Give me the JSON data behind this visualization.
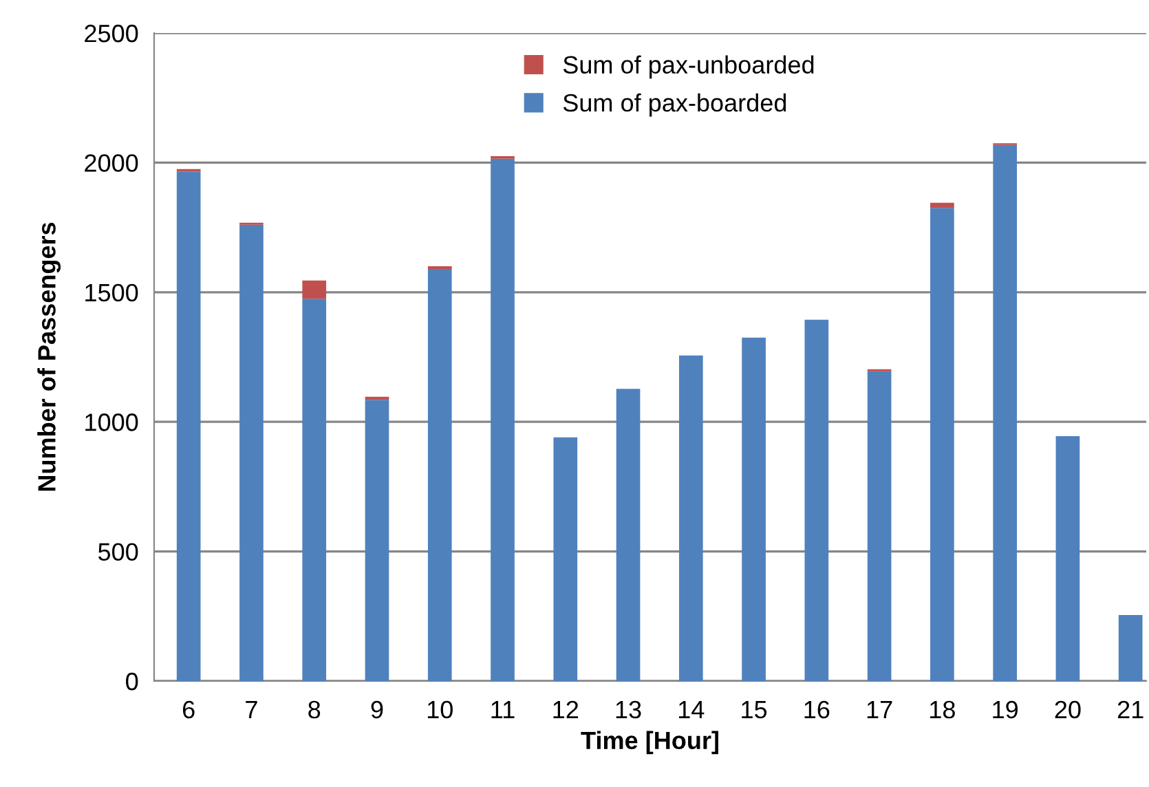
{
  "chart_data": {
    "type": "bar",
    "stacked": true,
    "xlabel": "Time [Hour]",
    "ylabel": "Number of Passengers",
    "categories": [
      "6",
      "7",
      "8",
      "9",
      "10",
      "11",
      "12",
      "13",
      "14",
      "15",
      "16",
      "17",
      "18",
      "19",
      "20",
      "21"
    ],
    "series": [
      {
        "name": "Sum of pax-boarded",
        "color": "#4f81bd",
        "values": [
          1965,
          1760,
          1475,
          1085,
          1590,
          2015,
          940,
          1127,
          1256,
          1325,
          1394,
          1195,
          1825,
          2068,
          945,
          255
        ]
      },
      {
        "name": "Sum of pax-unboarded",
        "color": "#c0504d",
        "values": [
          10,
          8,
          70,
          12,
          10,
          10,
          0,
          0,
          0,
          0,
          0,
          8,
          20,
          7,
          0,
          0
        ]
      }
    ],
    "ylim": [
      0,
      2500
    ],
    "yticks": [
      0,
      500,
      1000,
      1500,
      2000,
      2500
    ],
    "grid": "y",
    "legend": "top"
  }
}
